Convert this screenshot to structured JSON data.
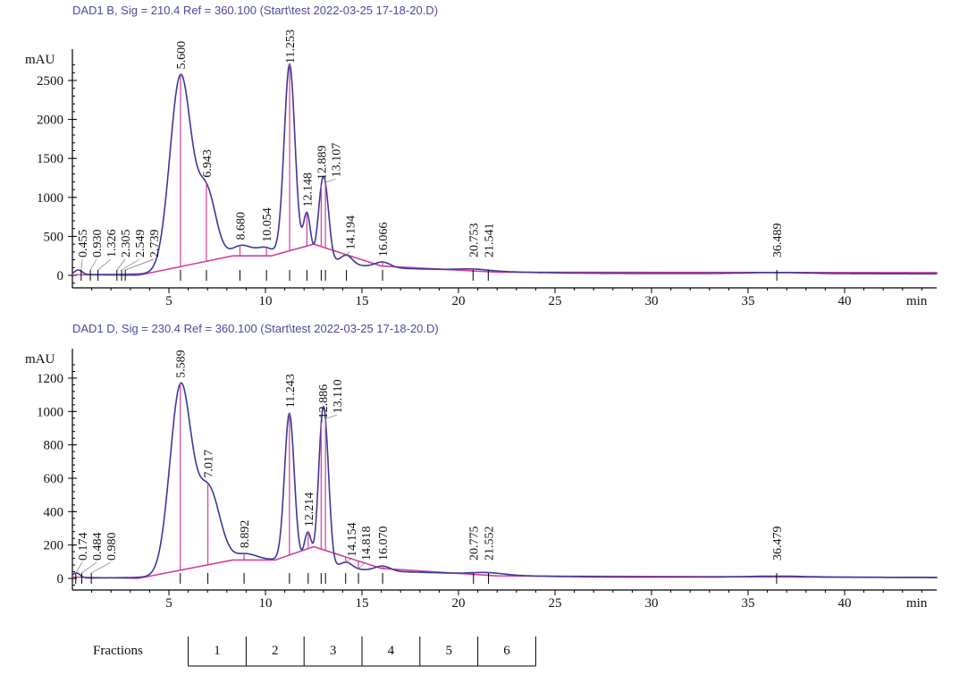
{
  "chart_data": [
    {
      "type": "line",
      "title": "DAD1 B, Sig = 210.4 Ref = 360.100 (Start\\test 2022-03-25 17-18-20.D)",
      "ylabel": "mAU",
      "xlabel": "min",
      "xlim": [
        0,
        44.8
      ],
      "ylim": [
        -100,
        2800
      ],
      "xticks": [
        5,
        10,
        15,
        20,
        25,
        30,
        35,
        40
      ],
      "yticks": [
        0,
        500,
        1000,
        1500,
        2000,
        2500
      ],
      "color": "#3a3a9a",
      "baseline_color": "#d0409a",
      "components": [
        {
          "rt": 0.3,
          "h": 60,
          "w": 0.2
        },
        {
          "rt": 5.6,
          "h": 2500,
          "w": 0.55
        },
        {
          "rt": 6.95,
          "h": 950,
          "w": 0.5
        },
        {
          "rt": 8.7,
          "h": 180,
          "w": 0.6
        },
        {
          "rt": 10.0,
          "h": 90,
          "w": 0.4
        },
        {
          "rt": 11.25,
          "h": 2450,
          "w": 0.28
        },
        {
          "rt": 12.15,
          "h": 560,
          "w": 0.18
        },
        {
          "rt": 12.9,
          "h": 700,
          "w": 0.2
        },
        {
          "rt": 13.15,
          "h": 600,
          "w": 0.2
        },
        {
          "rt": 14.2,
          "h": 110,
          "w": 0.3
        },
        {
          "rt": 16.07,
          "h": 70,
          "w": 0.4
        },
        {
          "rt": 10.5,
          "h": 230,
          "w": 2.6
        },
        {
          "rt": 17,
          "h": 60,
          "w": 4
        },
        {
          "rt": 20.75,
          "h": 20,
          "w": 0.8
        },
        {
          "rt": 36.5,
          "h": 12,
          "w": 1.5
        },
        {
          "rt": 30,
          "h": 25,
          "w": 20
        }
      ],
      "baseline": [
        [
          3.4,
          0
        ],
        [
          8.3,
          250
        ],
        [
          10.3,
          250
        ],
        [
          12.5,
          400
        ],
        [
          16,
          120
        ],
        [
          22,
          40
        ],
        [
          44.8,
          35
        ]
      ],
      "peaks": [
        {
          "rt": 0.455,
          "label": "0.455"
        },
        {
          "rt": 0.93,
          "label": "0.930"
        },
        {
          "rt": 1.326,
          "label": "1.326"
        },
        {
          "rt": 2.305,
          "label": "2.305"
        },
        {
          "rt": 2.549,
          "label": "2.549"
        },
        {
          "rt": 2.739,
          "label": "2.739"
        },
        {
          "rt": 5.6,
          "label": "5.600"
        },
        {
          "rt": 6.943,
          "label": "6.943"
        },
        {
          "rt": 8.68,
          "label": "8.680"
        },
        {
          "rt": 10.054,
          "label": "10.054"
        },
        {
          "rt": 11.253,
          "label": "11.253"
        },
        {
          "rt": 12.148,
          "label": "12.148"
        },
        {
          "rt": 12.889,
          "label": "12.889"
        },
        {
          "rt": 13.107,
          "label": "13.107"
        },
        {
          "rt": 14.194,
          "label": "14.194"
        },
        {
          "rt": 16.066,
          "label": "16.066"
        },
        {
          "rt": 20.753,
          "label": "20.753"
        },
        {
          "rt": 21.541,
          "label": "21.541"
        },
        {
          "rt": 36.489,
          "label": "36.489"
        }
      ]
    },
    {
      "type": "line",
      "title": "DAD1 D, Sig = 230.4 Ref = 360.100 (Start\\test 2022-03-25 17-18-20.D)",
      "ylabel": "mAU",
      "xlabel": "min",
      "xlim": [
        0,
        44.8
      ],
      "ylim": [
        -50,
        1300
      ],
      "xticks": [
        5,
        10,
        15,
        20,
        25,
        30,
        35,
        40
      ],
      "yticks": [
        0,
        200,
        400,
        600,
        800,
        1000,
        1200
      ],
      "color": "#3a3a9a",
      "baseline_color": "#d0409a",
      "components": [
        {
          "rt": 0.2,
          "h": 30,
          "w": 0.2
        },
        {
          "rt": 5.6,
          "h": 1120,
          "w": 0.55
        },
        {
          "rt": 7.05,
          "h": 480,
          "w": 0.6
        },
        {
          "rt": 8.9,
          "h": 50,
          "w": 0.6
        },
        {
          "rt": 11.24,
          "h": 880,
          "w": 0.25
        },
        {
          "rt": 12.2,
          "h": 180,
          "w": 0.18
        },
        {
          "rt": 12.9,
          "h": 620,
          "w": 0.2
        },
        {
          "rt": 13.15,
          "h": 530,
          "w": 0.2
        },
        {
          "rt": 14.2,
          "h": 35,
          "w": 0.3
        },
        {
          "rt": 16.07,
          "h": 30,
          "w": 0.4
        },
        {
          "rt": 10.3,
          "h": 100,
          "w": 2.6
        },
        {
          "rt": 17,
          "h": 30,
          "w": 4
        },
        {
          "rt": 21.5,
          "h": 12,
          "w": 0.8
        },
        {
          "rt": 36.5,
          "h": 6,
          "w": 1.5
        },
        {
          "rt": 30,
          "h": 8,
          "w": 20
        }
      ],
      "baseline": [
        [
          3.4,
          0
        ],
        [
          8.3,
          110
        ],
        [
          10.5,
          110
        ],
        [
          12.5,
          190
        ],
        [
          16,
          60
        ],
        [
          22,
          15
        ],
        [
          44.8,
          5
        ]
      ],
      "peaks": [
        {
          "rt": 0.174,
          "label": "0.174"
        },
        {
          "rt": 0.484,
          "label": "0.484"
        },
        {
          "rt": 0.98,
          "label": "0.980"
        },
        {
          "rt": 5.589,
          "label": "5.589"
        },
        {
          "rt": 7.017,
          "label": "7.017"
        },
        {
          "rt": 8.892,
          "label": "8.892"
        },
        {
          "rt": 11.243,
          "label": "11.243"
        },
        {
          "rt": 12.214,
          "label": "12.214"
        },
        {
          "rt": 12.886,
          "label": "12.886"
        },
        {
          "rt": 13.11,
          "label": "13.110"
        },
        {
          "rt": 14.154,
          "label": "14.154"
        },
        {
          "rt": 14.818,
          "label": "14.818"
        },
        {
          "rt": 16.07,
          "label": "16.070"
        },
        {
          "rt": 20.775,
          "label": "20.775"
        },
        {
          "rt": 21.552,
          "label": "21.552"
        },
        {
          "rt": 36.479,
          "label": "36.479"
        }
      ]
    }
  ],
  "fractions": {
    "label": "Fractions",
    "items": [
      {
        "label": "1",
        "start": 6,
        "end": 9
      },
      {
        "label": "2",
        "start": 9,
        "end": 12
      },
      {
        "label": "3",
        "start": 12,
        "end": 15
      },
      {
        "label": "4",
        "start": 15,
        "end": 18
      },
      {
        "label": "5",
        "start": 18,
        "end": 21
      },
      {
        "label": "6",
        "start": 21,
        "end": 24
      }
    ]
  }
}
